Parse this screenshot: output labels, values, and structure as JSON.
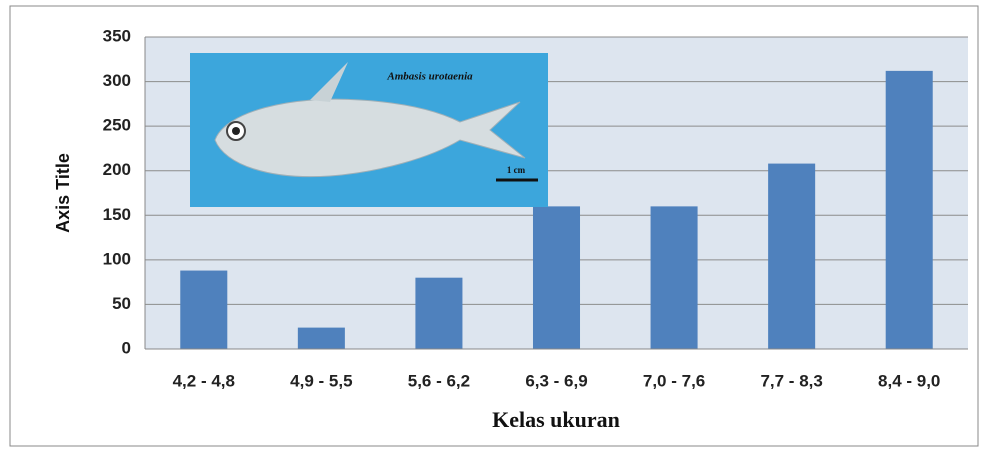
{
  "chart_data": {
    "type": "bar",
    "y_label": "Axis Title",
    "x_label": "Kelas ukuran",
    "categories": [
      "4,2 - 4,8",
      "4,9 - 5,5",
      "5,6 - 6,2",
      "6,3 - 6,9",
      "7,0 - 7,6",
      "7,7 - 8,3",
      "8,4 - 9,0"
    ],
    "values": [
      88,
      24,
      80,
      160,
      160,
      208,
      312
    ],
    "color": "#4f81bd",
    "ylim": [
      0,
      350
    ],
    "yticks": [
      0,
      50,
      100,
      150,
      200,
      250,
      300,
      350
    ],
    "grid": true,
    "annotations": [
      "Ambasis urotaenia",
      "1 cm"
    ]
  }
}
